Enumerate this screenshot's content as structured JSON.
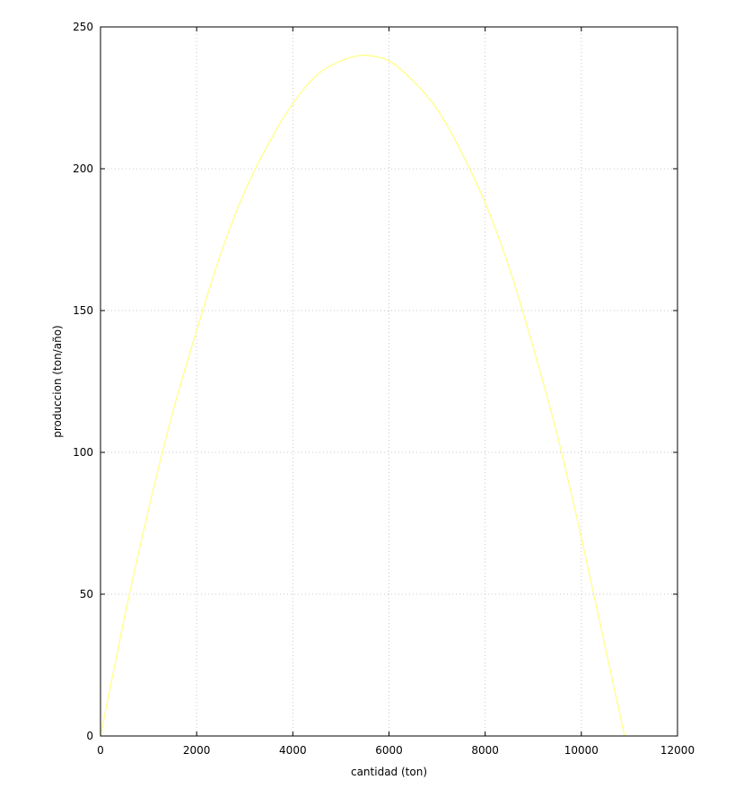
{
  "chart_data": {
    "type": "line",
    "title": "",
    "xlabel": "cantidad (ton)",
    "ylabel": "produccion (ton/año)",
    "xlim": [
      0,
      12000
    ],
    "ylim": [
      0,
      250
    ],
    "x_ticks": [
      0,
      2000,
      4000,
      6000,
      8000,
      10000,
      12000
    ],
    "y_ticks": [
      0,
      50,
      100,
      150,
      200,
      250
    ],
    "x_tick_labels": [
      "0",
      "2000",
      "4000",
      "6000",
      "8000",
      "10000",
      "12000"
    ],
    "y_tick_labels": [
      "0",
      "50",
      "100",
      "150",
      "200",
      "250"
    ],
    "grid": true,
    "legend": "none",
    "series": [
      {
        "color": "#ffff80",
        "x": [
          0,
          500,
          1000,
          1500,
          2000,
          2500,
          3000,
          3500,
          4000,
          4500,
          5000,
          5450,
          6000,
          6500,
          7000,
          7500,
          8000,
          8500,
          9000,
          9500,
          10000,
          10500,
          10900
        ],
        "y": [
          0,
          42,
          80,
          114,
          143,
          170,
          192,
          209,
          223,
          233,
          238,
          240,
          238,
          231,
          221,
          206,
          188,
          165,
          137,
          106,
          70,
          31,
          0
        ]
      }
    ]
  }
}
